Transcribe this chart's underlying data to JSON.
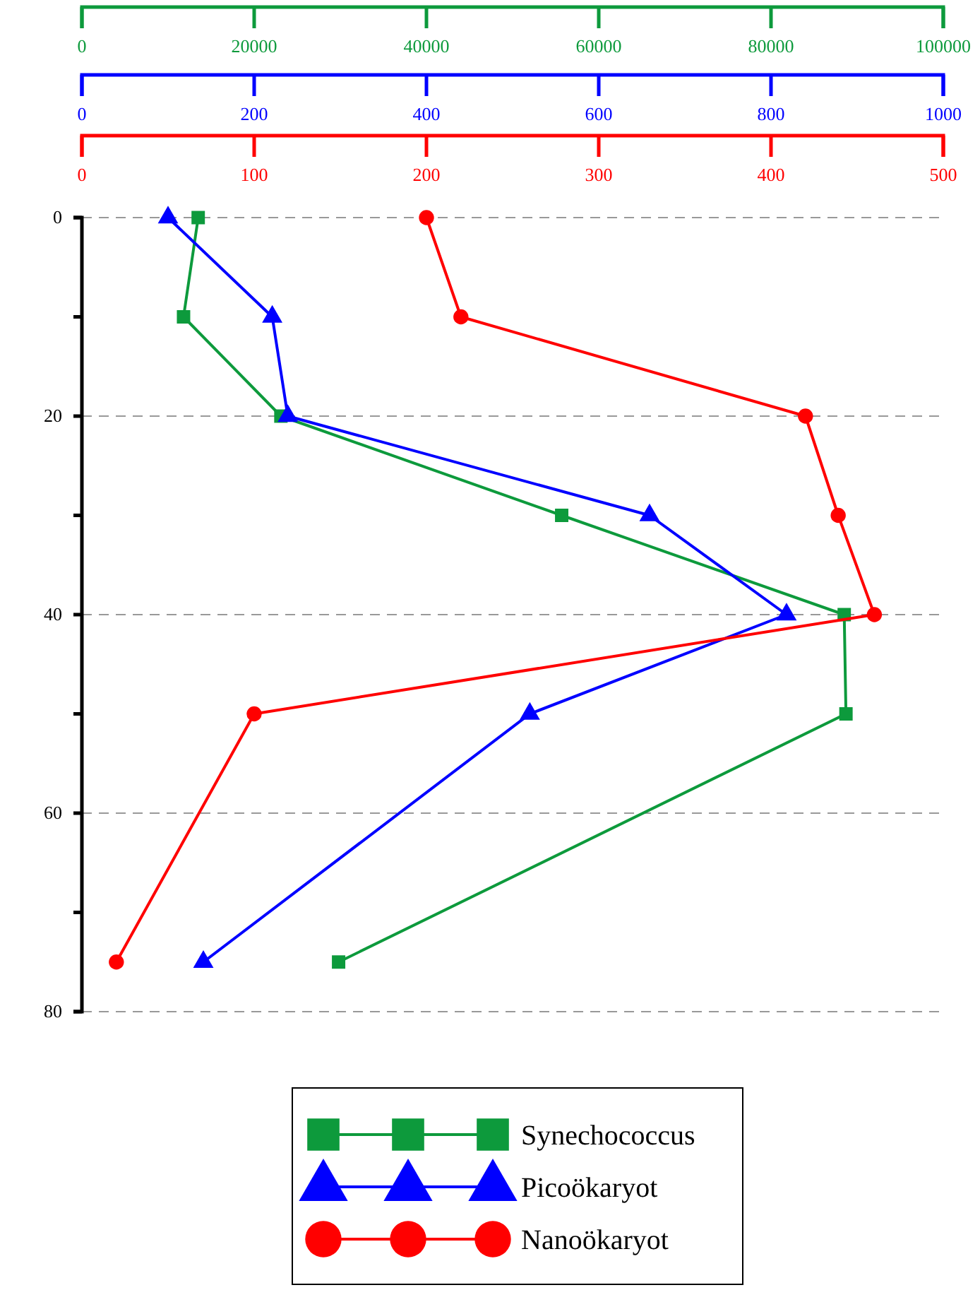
{
  "chart_data": [
    {
      "type": "line",
      "ylim": [
        80,
        0
      ],
      "yticks": [
        0,
        {
          "value": 10,
          "label": null
        },
        20,
        {
          "value": 30,
          "label": null
        },
        40,
        {
          "value": 50,
          "label": null
        },
        60,
        {
          "value": 70,
          "label": null
        },
        80
      ],
      "xlim": [
        0,
        100000
      ],
      "xticks": [
        0,
        20000,
        40000,
        60000,
        80000,
        100000
      ],
      "x2lim": [
        0,
        1000
      ],
      "x2ticks": [
        0,
        200,
        400,
        600,
        800,
        1000
      ],
      "grid": "y",
      "legend": "bottom",
      "series": [
        {
          "name": "Synechococcus",
          "color": "#0d9a3c",
          "marker": "square",
          "x": [
            13500,
            11800,
            23100,
            55700,
            88500,
            88700,
            29800
          ],
          "values": [
            0,
            10,
            20,
            30,
            40,
            50,
            75
          ]
        },
        {
          "name": "Picoökaryot",
          "color": "#0000ff",
          "marker": "triangle",
          "axis": "x2",
          "x": [
            100,
            221,
            239,
            659,
            818,
            520,
            141
          ],
          "values": [
            0,
            10,
            20,
            30,
            40,
            50,
            75
          ]
        }
      ]
    },
    {
      "type": "line",
      "ylim": [
        80,
        0
      ],
      "xlim": [
        0,
        500
      ],
      "xticks": [
        0,
        100,
        200,
        300,
        400,
        500
      ],
      "tick_labels": "x",
      "legend": "bottom",
      "series": [
        {
          "name": "Nanoökaryot",
          "color": "#ff0000",
          "marker": "circle",
          "x": [
            200,
            220,
            420,
            439,
            460,
            100,
            20
          ],
          "values": [
            0,
            10,
            20,
            30,
            40,
            50,
            75
          ]
        }
      ]
    }
  ]
}
